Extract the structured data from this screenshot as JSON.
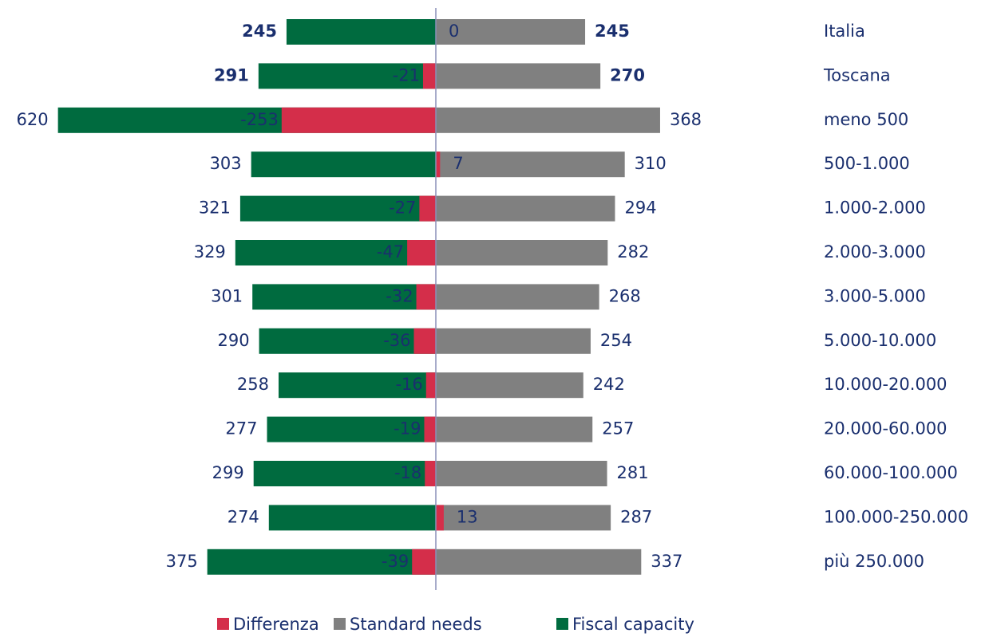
{
  "chart_data": {
    "type": "diverging-bar",
    "categories": [
      "Italia",
      "Toscana",
      "meno 500",
      "500-1.000",
      "1.000-2.000",
      "2.000-3.000",
      "3.000-5.000",
      "5.000-10.000",
      "10.000-20.000",
      "20.000-60.000",
      "60.000-100.000",
      "100.000-250.000",
      "più 250.000"
    ],
    "series": [
      {
        "name": "Differenza",
        "color": "#d42e4a",
        "values": [
          0,
          -21,
          -253,
          7,
          -27,
          -47,
          -32,
          -36,
          -16,
          -19,
          -18,
          13,
          -39
        ]
      },
      {
        "name": "Standard needs",
        "color": "#808080",
        "values": [
          245,
          270,
          368,
          310,
          294,
          282,
          268,
          254,
          242,
          257,
          281,
          287,
          337
        ]
      },
      {
        "name": "Fiscal capacity",
        "color": "#006b3f",
        "values": [
          245,
          291,
          620,
          303,
          321,
          329,
          301,
          290,
          258,
          277,
          299,
          274,
          375
        ]
      }
    ],
    "legend": "bottom"
  }
}
